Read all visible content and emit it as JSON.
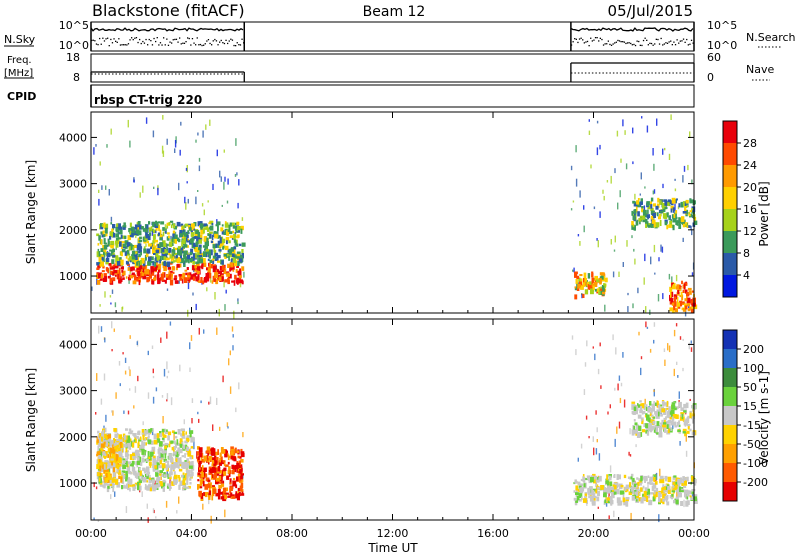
{
  "header": {
    "title": "Blackstone (fitACF)",
    "beam": "Beam 12",
    "date": "05/Jul/2015"
  },
  "strips": {
    "nsky": {
      "label": "N.Sky",
      "ticks": [
        "10^5",
        "10^0"
      ],
      "right_label": "N.Search",
      "right_ticks": [
        "10^5",
        "10^0"
      ]
    },
    "freq": {
      "label_line1": "Freq.",
      "label_line2": "[MHz]",
      "ticks": [
        "18",
        "8"
      ],
      "right_label": "Nave",
      "right_ticks": [
        "60",
        "0"
      ]
    },
    "cpid": {
      "label": "CPID",
      "value": "rbsp CT-trig 220"
    }
  },
  "colorbars": {
    "power": {
      "label": "Power [dB]",
      "ticks": [
        "28",
        "24",
        "20",
        "16",
        "12",
        "8",
        "4"
      ],
      "colors": [
        "#e8000b",
        "#ff4a00",
        "#ff9a00",
        "#ffd000",
        "#a6d21a",
        "#3b9a5a",
        "#2a5aa8",
        "#0018e0"
      ]
    },
    "velocity": {
      "label": "Velocity [m s-1]",
      "ticks": [
        "200",
        "100",
        "50",
        "15",
        "-15",
        "-50",
        "-100",
        "-200"
      ],
      "colors": [
        "#1432b4",
        "#2a6ec8",
        "#3c8c3c",
        "#6ad23c",
        "#c8c8c8",
        "#ffd200",
        "#ffa000",
        "#ff5a00",
        "#e60000"
      ]
    }
  },
  "chart_data": [
    {
      "type": "heatmap",
      "title": "",
      "xlabel": "",
      "ylabel": "Slant Range [km]",
      "y_ticks": [
        "1000",
        "2000",
        "3000",
        "4000"
      ],
      "ylim": [
        200,
        4550
      ],
      "x_ticks": [
        "00:00",
        "04:00",
        "08:00",
        "12:00",
        "16:00",
        "20:00",
        "00:00"
      ],
      "xlim_hours": [
        0,
        24
      ],
      "colorbar": "Power [dB]",
      "data_windows_hours": [
        [
          0,
          6.1
        ],
        [
          19.1,
          24
        ]
      ],
      "features": [
        {
          "time_hours": [
            0.2,
            6.0
          ],
          "range_km": [
            900,
            1300
          ],
          "power_db": "24-32"
        },
        {
          "time_hours": [
            0.2,
            6.0
          ],
          "range_km": [
            1300,
            2200
          ],
          "power_db": "8-20"
        },
        {
          "time_hours": [
            19.2,
            20.5
          ],
          "range_km": [
            600,
            1100
          ],
          "power_db": "12-28"
        },
        {
          "time_hours": [
            21.5,
            24.0
          ],
          "range_km": [
            2100,
            2700
          ],
          "power_db": "8-16"
        },
        {
          "time_hours": [
            23.0,
            24.0
          ],
          "range_km": [
            300,
            900
          ],
          "power_db": "20-32"
        }
      ]
    },
    {
      "type": "heatmap",
      "title": "",
      "xlabel": "Time UT",
      "ylabel": "Slant Range [km]",
      "y_ticks": [
        "1000",
        "2000",
        "3000",
        "4000"
      ],
      "ylim": [
        200,
        4550
      ],
      "x_ticks": [
        "00:00",
        "04:00",
        "08:00",
        "12:00",
        "16:00",
        "20:00",
        "00:00"
      ],
      "xlim_hours": [
        0,
        24
      ],
      "colorbar": "Velocity [m s-1]",
      "data_windows_hours": [
        [
          0,
          6.1
        ],
        [
          19.1,
          24
        ]
      ],
      "features": [
        {
          "time_hours": [
            0.2,
            4.0
          ],
          "range_km": [
            900,
            2200
          ],
          "velocity_ms": "-15 to 15"
        },
        {
          "time_hours": [
            0.2,
            1.2
          ],
          "range_km": [
            1100,
            2100
          ],
          "velocity_ms": "-50 to -15"
        },
        {
          "time_hours": [
            4.2,
            6.0
          ],
          "range_km": [
            700,
            1800
          ],
          "velocity_ms": "-200 to -100"
        },
        {
          "time_hours": [
            19.2,
            24.0
          ],
          "range_km": [
            600,
            1200
          ],
          "velocity_ms": "-15 to 15"
        },
        {
          "time_hours": [
            21.5,
            24.0
          ],
          "range_km": [
            2100,
            2800
          ],
          "velocity_ms": "-15 to 15"
        }
      ]
    }
  ]
}
